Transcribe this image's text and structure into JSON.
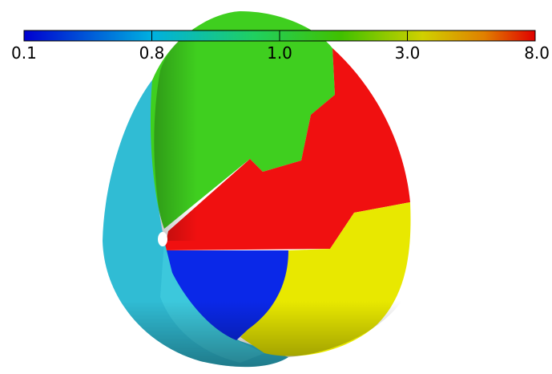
{
  "colorbar": {
    "ticks": [
      "0.1",
      "0.8",
      "1.0",
      "3.0",
      "8.0"
    ]
  }
}
